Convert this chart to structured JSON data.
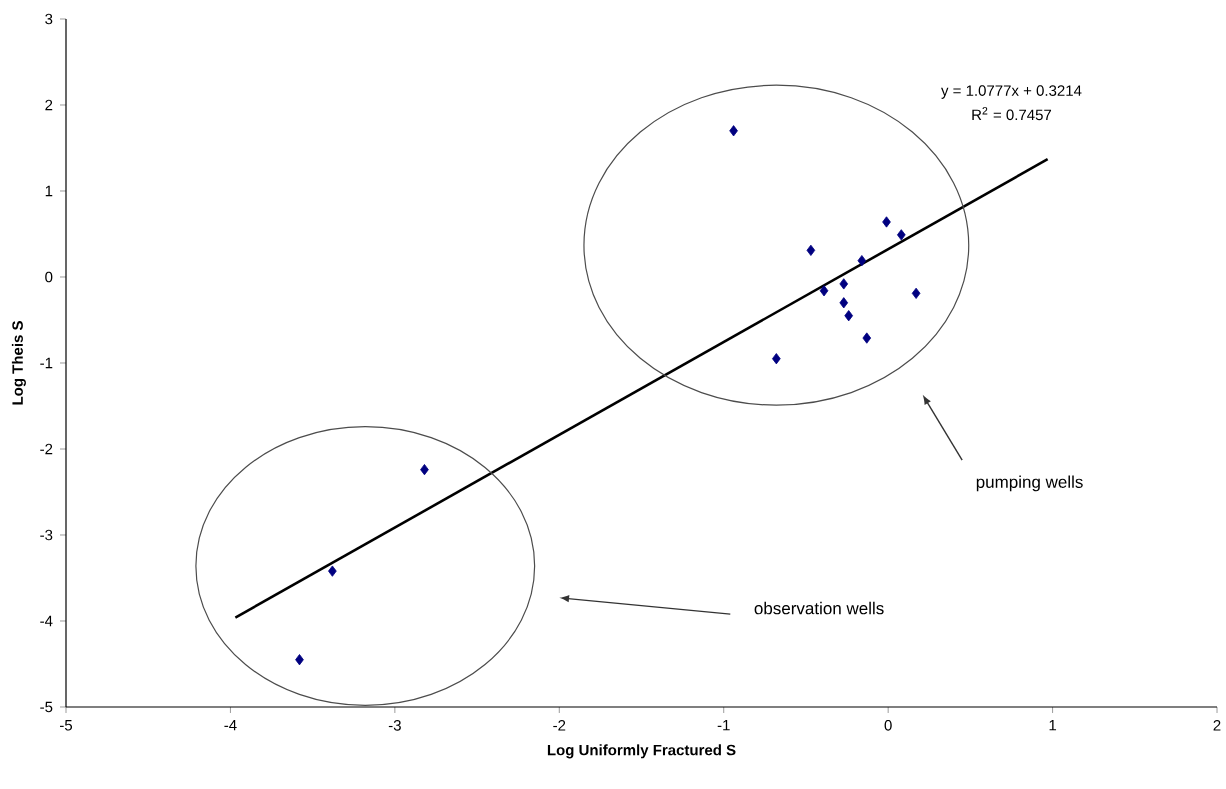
{
  "chart_data": {
    "type": "scatter",
    "xlabel": "Log Uniformly Fractured S",
    "ylabel": "Log Theis S",
    "annotations": [
      "y = 1.0777x + 0.3214",
      "R$^{2}$ = 0.7457",
      "pumping wells",
      "observation wells"
    ],
    "series": [
      {
        "color": "#000080",
        "marker": "diamond",
        "x": [
          -0.94,
          -0.47,
          -0.01,
          0.08,
          -0.16,
          -0.39,
          -0.27,
          0.17,
          -0.27,
          -0.24,
          -0.13,
          -0.68,
          -2.82,
          -3.38,
          -3.58
        ],
        "values": [
          1.7,
          0.31,
          0.64,
          0.49,
          0.19,
          -0.16,
          -0.08,
          -0.19,
          -0.3,
          -0.45,
          -0.71,
          -0.95,
          -2.24,
          -3.42,
          -4.45
        ]
      },
      {
        "type": "line",
        "color": "#000000",
        "marker": "none",
        "x": [
          -3.97,
          0.97
        ],
        "values": [
          -3.96,
          1.37
        ]
      }
    ],
    "xlim": [
      -5,
      2
    ],
    "ylim": [
      -5,
      3
    ],
    "xticks": [
      -5,
      -4,
      -3,
      -2,
      -1,
      0,
      1,
      2
    ],
    "yticks": [
      -5,
      -4,
      -3,
      -2,
      -1,
      0,
      1,
      2,
      3
    ],
    "grid": false
  }
}
